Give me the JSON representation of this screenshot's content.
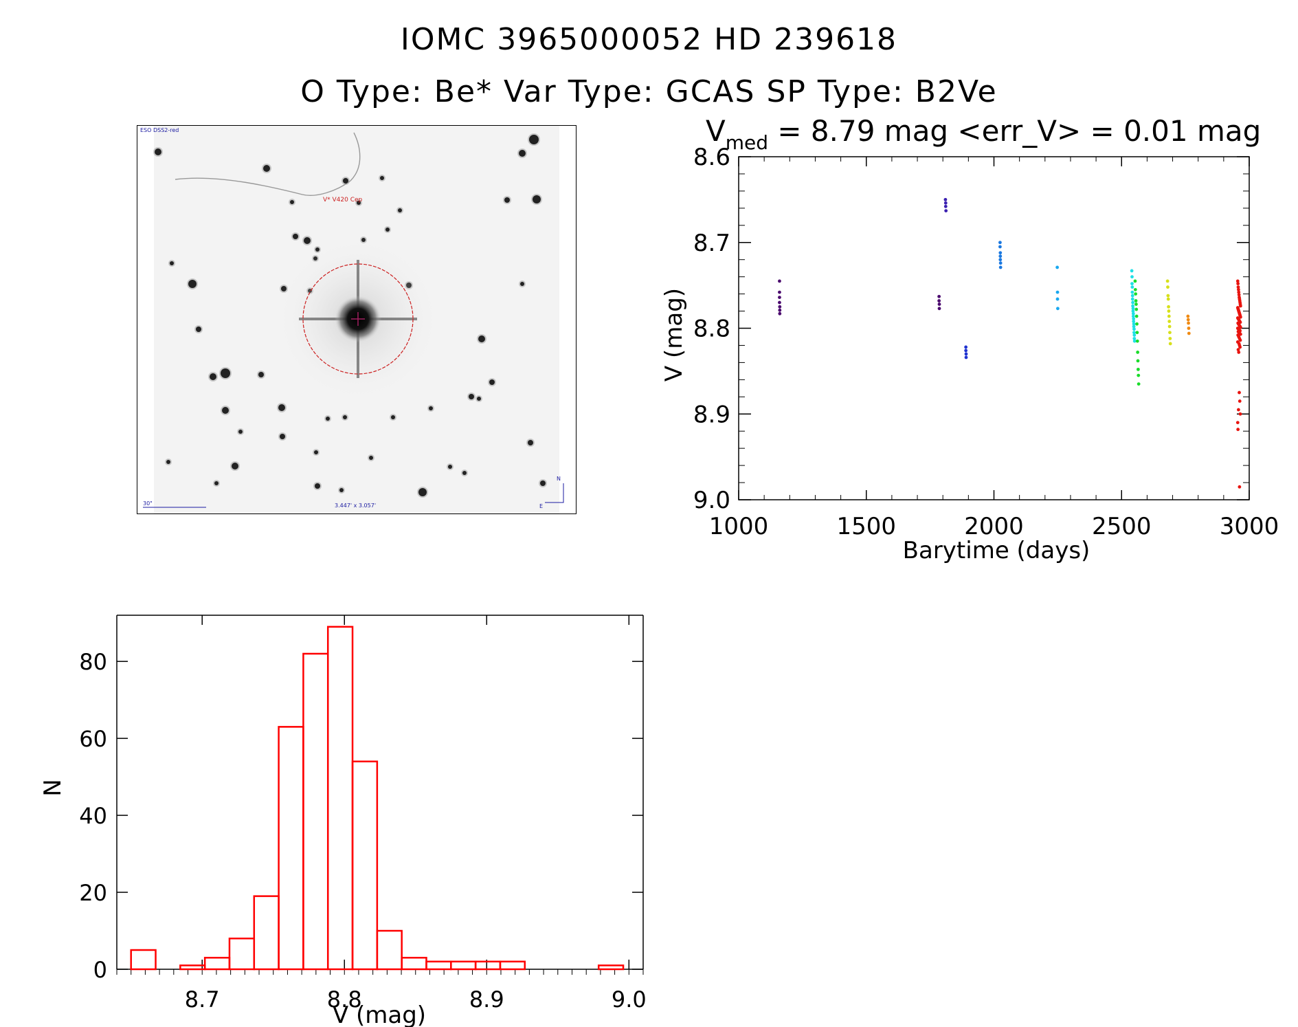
{
  "title_line1": "IOMC 3965000052    HD 239618",
  "title_line2": "O Type: Be*   Var Type: GCAS   SP Type: B2Ve",
  "finder_chart": {
    "survey_label": "ESO DSS2-red",
    "target_label": "V* V420 Cep",
    "scale_label": "30\"",
    "fov_label": "3.447' x 3.057'",
    "north_label": "N",
    "east_label": "E",
    "colors": {
      "background": "#f3f3f3",
      "circle": "#cc1f1f",
      "annotation": "#1a1aa0"
    }
  },
  "chart_data": [
    {
      "type": "scatter",
      "title_prefix": "V",
      "title_subscript": "med",
      "title_rest": " = 8.79 mag <err_V> = 0.01 mag",
      "xlabel": "Barytime (days)",
      "ylabel": "V (mag)",
      "xlim": [
        1000,
        3000
      ],
      "ylim": [
        9.0,
        8.6
      ],
      "y_inverted": true,
      "xticks": [
        1000,
        1500,
        2000,
        2500,
        3000
      ],
      "yticks": [
        8.6,
        8.7,
        8.8,
        8.9,
        9.0
      ],
      "color_by": "time (rainbow)",
      "groups": [
        {
          "color": "#4b0a6e",
          "x": [
            1160,
            1160,
            1160,
            1160,
            1161,
            1161,
            1161
          ],
          "y": [
            8.745,
            8.758,
            8.764,
            8.77,
            8.775,
            8.779,
            8.783
          ]
        },
        {
          "color": "#4b0a6e",
          "x": [
            1785,
            1785,
            1786,
            1786
          ],
          "y": [
            8.763,
            8.768,
            8.772,
            8.777
          ]
        },
        {
          "color": "#3a1fb0",
          "x": [
            1810,
            1811,
            1811,
            1812
          ],
          "y": [
            8.65,
            8.654,
            8.658,
            8.663
          ]
        },
        {
          "color": "#2033d0",
          "x": [
            1890,
            1890,
            1891,
            1891
          ],
          "y": [
            8.822,
            8.826,
            8.83,
            8.834
          ]
        },
        {
          "color": "#1a78e0",
          "x": [
            2024,
            2024,
            2025,
            2025,
            2025,
            2026,
            2026
          ],
          "y": [
            8.7,
            8.705,
            8.712,
            8.716,
            8.72,
            8.724,
            8.729
          ]
        },
        {
          "color": "#19a8f0",
          "x": [
            2248,
            2249,
            2249,
            2250
          ],
          "y": [
            8.729,
            8.758,
            8.766,
            8.777
          ]
        },
        {
          "color": "#1fe0e6",
          "x": [
            2540,
            2541,
            2541,
            2542,
            2542,
            2543,
            2543,
            2544,
            2544,
            2545,
            2545,
            2546,
            2546,
            2547,
            2547,
            2548,
            2548,
            2549,
            2549,
            2550,
            2550,
            2551
          ],
          "y": [
            8.733,
            8.74,
            8.748,
            8.752,
            8.758,
            8.762,
            8.766,
            8.77,
            8.774,
            8.777,
            8.78,
            8.783,
            8.786,
            8.789,
            8.792,
            8.795,
            8.798,
            8.801,
            8.805,
            8.808,
            8.812,
            8.815
          ]
        },
        {
          "color": "#19dc2a",
          "x": [
            2553,
            2554,
            2555,
            2556,
            2557,
            2558,
            2559,
            2560,
            2561,
            2562,
            2563,
            2564,
            2565,
            2566,
            2567
          ],
          "y": [
            8.745,
            8.755,
            8.76,
            8.768,
            8.772,
            8.778,
            8.786,
            8.795,
            8.805,
            8.815,
            8.828,
            8.838,
            8.848,
            8.855,
            8.865
          ]
        },
        {
          "color": "#d7e01a",
          "x": [
            2680,
            2681,
            2682,
            2683,
            2684,
            2685,
            2686,
            2687,
            2688,
            2689,
            2690,
            2691
          ],
          "y": [
            8.745,
            8.752,
            8.762,
            8.766,
            8.775,
            8.78,
            8.786,
            8.792,
            8.798,
            8.805,
            8.812,
            8.818
          ]
        },
        {
          "color": "#f08a12",
          "x": [
            2760,
            2761,
            2762,
            2763,
            2764
          ],
          "y": [
            8.786,
            8.79,
            8.794,
            8.8,
            8.806
          ]
        },
        {
          "color": "#e8140f",
          "x": [
            2955,
            2956,
            2957,
            2958,
            2959,
            2960,
            2961,
            2962,
            2963,
            2964,
            2965,
            2966,
            2955,
            2956,
            2957,
            2958,
            2959,
            2960,
            2961,
            2962,
            2963,
            2964,
            2965,
            2966,
            2955,
            2957,
            2959,
            2961,
            2963,
            2965,
            2956,
            2958,
            2960,
            2962,
            2964,
            2966,
            2955,
            2958,
            2961,
            2964,
            2957,
            2960,
            2963,
            2966,
            2956,
            2959,
            2962,
            2965,
            2955,
            2960,
            2962,
            2964,
            2957,
            2959,
            2961,
            2963,
            2958,
            2965,
            2955,
            2956,
            2962
          ],
          "y": [
            8.745,
            8.748,
            8.752,
            8.755,
            8.758,
            8.761,
            8.764,
            8.766,
            8.768,
            8.77,
            8.772,
            8.774,
            8.776,
            8.777,
            8.778,
            8.779,
            8.78,
            8.781,
            8.782,
            8.783,
            8.784,
            8.785,
            8.786,
            8.787,
            8.788,
            8.789,
            8.79,
            8.791,
            8.792,
            8.793,
            8.794,
            8.795,
            8.796,
            8.797,
            8.798,
            8.799,
            8.8,
            8.801,
            8.802,
            8.803,
            8.804,
            8.805,
            8.806,
            8.807,
            8.808,
            8.81,
            8.812,
            8.814,
            8.816,
            8.818,
            8.82,
            8.822,
            8.825,
            8.828,
            8.875,
            8.885,
            8.895,
            8.9,
            8.91,
            8.918,
            8.985
          ]
        }
      ]
    },
    {
      "type": "bar",
      "style": "histogram outline",
      "xlabel": "V (mag)",
      "ylabel": "N",
      "xlim": [
        8.64,
        9.01
      ],
      "ylim": [
        0,
        92
      ],
      "xticks": [
        8.7,
        8.8,
        8.9,
        9.0
      ],
      "yticks": [
        0,
        20,
        40,
        60,
        80
      ],
      "bin_width": 0.0173,
      "bin_start": 8.65,
      "values": [
        5,
        0,
        1,
        3,
        8,
        19,
        63,
        82,
        89,
        54,
        10,
        3,
        2,
        2,
        2,
        2,
        0,
        0,
        0,
        1
      ],
      "color": "#ff0000"
    }
  ]
}
